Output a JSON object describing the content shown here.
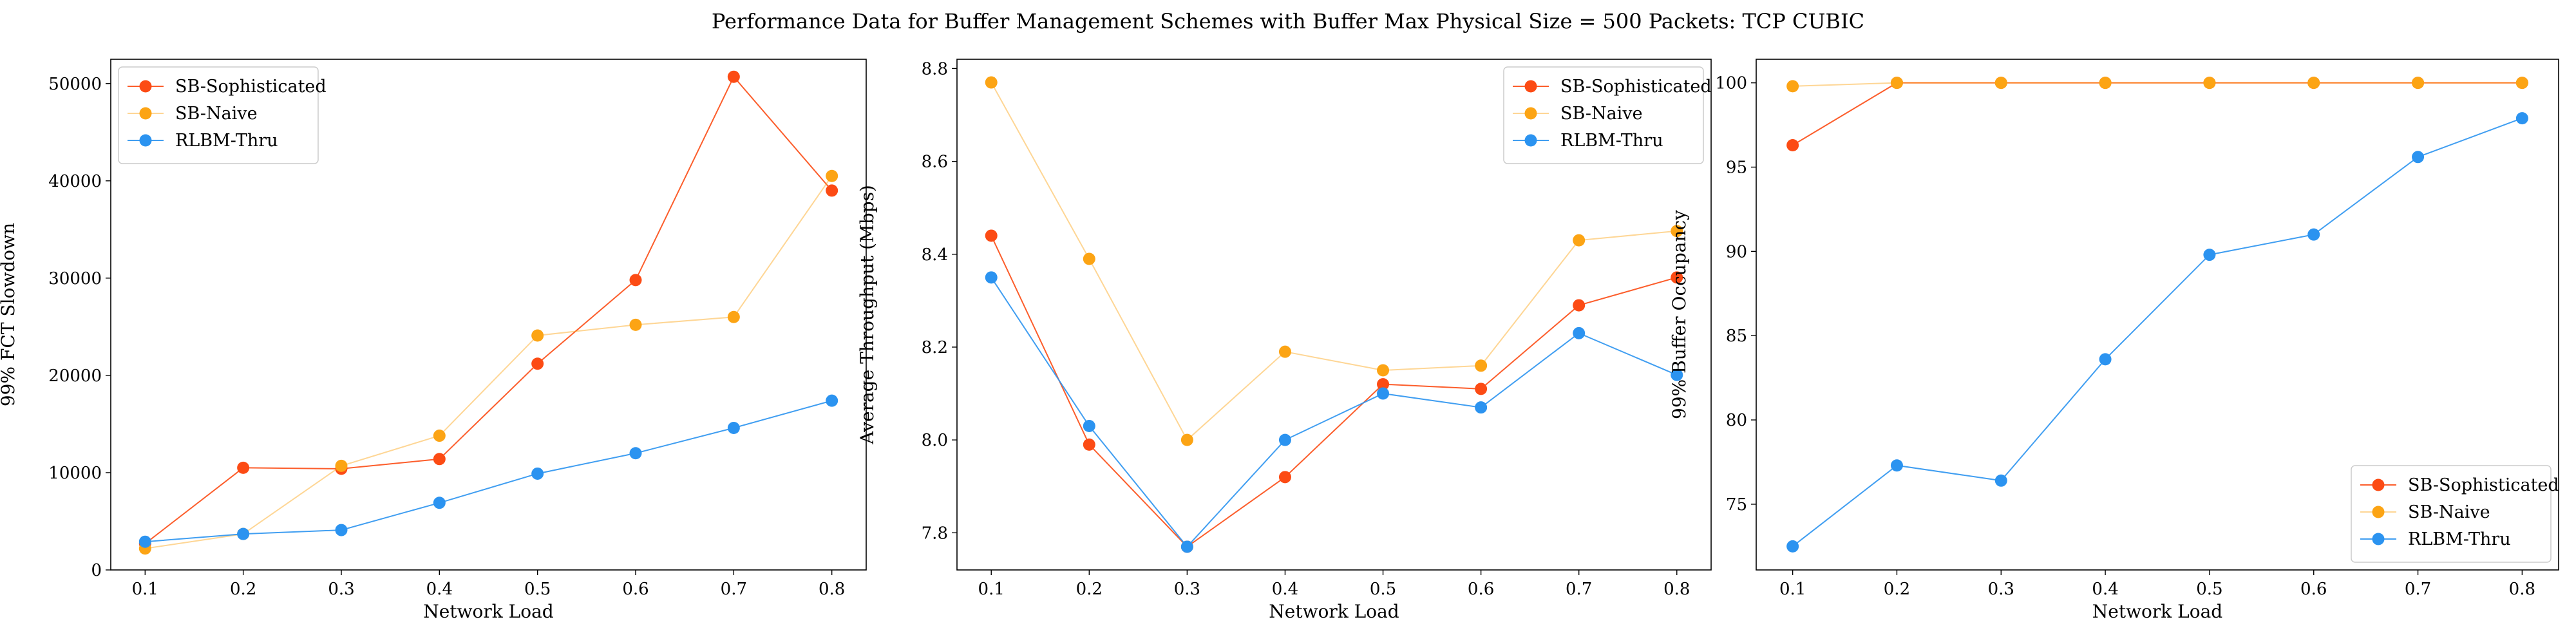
{
  "figure": {
    "suptitle": "Performance Data for Buffer Management Schemes with Buffer Max Physical Size = 500 Packets: TCP CUBIC"
  },
  "series_styles": [
    {
      "name": "SB-Sophisticated",
      "color": "#fc4b14"
    },
    {
      "name": "SB-Naive",
      "color": "#fca414"
    },
    {
      "name": "RLBM-Thru",
      "color": "#2b93f0"
    }
  ],
  "chart_data": [
    {
      "type": "line",
      "xlabel": "Network Load",
      "ylabel": "99% FCT Slowdown",
      "x": [
        0.1,
        0.2,
        0.3,
        0.4,
        0.5,
        0.6,
        0.7,
        0.8
      ],
      "xlim": [
        0.065,
        0.835
      ],
      "ylim": [
        0,
        52500
      ],
      "xticks": [
        0.1,
        0.2,
        0.3,
        0.4,
        0.5,
        0.6,
        0.7,
        0.8
      ],
      "xticklabels": [
        "0.1",
        "0.2",
        "0.3",
        "0.4",
        "0.5",
        "0.6",
        "0.7",
        "0.8"
      ],
      "yticks": [
        0,
        10000,
        20000,
        30000,
        40000,
        50000
      ],
      "yticklabels": [
        "0",
        "10000",
        "20000",
        "30000",
        "40000",
        "50000"
      ],
      "legend": "top-left",
      "series": [
        {
          "name": "SB-Sophisticated",
          "values": [
            2700,
            10500,
            10400,
            11400,
            21200,
            29800,
            50700,
            39000
          ]
        },
        {
          "name": "SB-Naive",
          "values": [
            2200,
            3700,
            10700,
            13800,
            24100,
            25200,
            26000,
            40500
          ]
        },
        {
          "name": "RLBM-Thru",
          "values": [
            2900,
            3700,
            4100,
            6900,
            9900,
            12000,
            14600,
            17400
          ]
        }
      ]
    },
    {
      "type": "line",
      "xlabel": "Network Load",
      "ylabel": "Average Throughput (Mbps)",
      "x": [
        0.1,
        0.2,
        0.3,
        0.4,
        0.5,
        0.6,
        0.7,
        0.8
      ],
      "xlim": [
        0.065,
        0.835
      ],
      "ylim": [
        7.72,
        8.82
      ],
      "xticks": [
        0.1,
        0.2,
        0.3,
        0.4,
        0.5,
        0.6,
        0.7,
        0.8
      ],
      "xticklabels": [
        "0.1",
        "0.2",
        "0.3",
        "0.4",
        "0.5",
        "0.6",
        "0.7",
        "0.8"
      ],
      "yticks": [
        7.8,
        8.0,
        8.2,
        8.4,
        8.6,
        8.8
      ],
      "yticklabels": [
        "7.8",
        "8.0",
        "8.2",
        "8.4",
        "8.6",
        "8.8"
      ],
      "legend": "top-right",
      "series": [
        {
          "name": "SB-Sophisticated",
          "values": [
            8.44,
            7.99,
            7.77,
            7.92,
            8.12,
            8.11,
            8.29,
            8.35
          ]
        },
        {
          "name": "SB-Naive",
          "values": [
            8.77,
            8.39,
            8.0,
            8.19,
            8.15,
            8.16,
            8.43,
            8.45
          ]
        },
        {
          "name": "RLBM-Thru",
          "values": [
            8.35,
            8.03,
            7.77,
            8.0,
            8.1,
            8.07,
            8.23,
            8.14
          ]
        }
      ]
    },
    {
      "type": "line",
      "xlabel": "Network Load",
      "ylabel": "99% Buffer Occupancy",
      "x": [
        0.1,
        0.2,
        0.3,
        0.4,
        0.5,
        0.6,
        0.7,
        0.8
      ],
      "xlim": [
        0.065,
        0.835
      ],
      "ylim": [
        71.1,
        101.4
      ],
      "xticks": [
        0.1,
        0.2,
        0.3,
        0.4,
        0.5,
        0.6,
        0.7,
        0.8
      ],
      "xticklabels": [
        "0.1",
        "0.2",
        "0.3",
        "0.4",
        "0.5",
        "0.6",
        "0.7",
        "0.8"
      ],
      "yticks": [
        75,
        80,
        85,
        90,
        95,
        100
      ],
      "yticklabels": [
        "75",
        "80",
        "85",
        "90",
        "95",
        "100"
      ],
      "legend": "bottom-right",
      "series": [
        {
          "name": "SB-Sophisticated",
          "values": [
            96.3,
            100,
            100,
            100,
            100,
            100,
            100,
            100
          ]
        },
        {
          "name": "SB-Naive",
          "values": [
            99.8,
            100,
            100,
            100,
            100,
            100,
            100,
            100
          ]
        },
        {
          "name": "RLBM-Thru",
          "values": [
            72.5,
            77.3,
            76.4,
            83.6,
            89.8,
            91.0,
            95.6,
            97.9
          ]
        }
      ]
    }
  ]
}
